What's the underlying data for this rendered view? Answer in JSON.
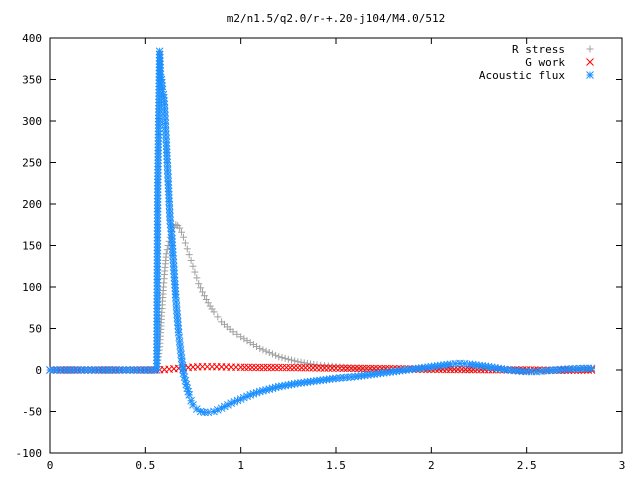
{
  "chart_data": {
    "type": "scatter",
    "title": "m2/n1.5/q2.0/r-+.20-j104/M4.0/512",
    "xlabel": "",
    "ylabel": "",
    "xlim": [
      0,
      3
    ],
    "ylim": [
      -100,
      400
    ],
    "x_ticks": [
      0,
      0.5,
      1,
      1.5,
      2,
      2.5,
      3
    ],
    "x_tick_labels": [
      "0",
      "0.5",
      "1",
      "1.5",
      "2",
      "2.5",
      "3"
    ],
    "y_ticks": [
      -100,
      -50,
      0,
      50,
      100,
      150,
      200,
      250,
      300,
      350,
      400
    ],
    "y_tick_labels": [
      "-100",
      "-50",
      "0",
      "50",
      "100",
      "150",
      "200",
      "250",
      "300",
      "350",
      "400"
    ],
    "grid": false,
    "legend_position": "top-right",
    "series": [
      {
        "name": "R stress",
        "marker": "plus",
        "color": "#a0a0a0",
        "points": [
          [
            0.0,
            0
          ],
          [
            0.1,
            0
          ],
          [
            0.2,
            0
          ],
          [
            0.3,
            0
          ],
          [
            0.4,
            0
          ],
          [
            0.5,
            0
          ],
          [
            0.56,
            0
          ],
          [
            0.575,
            28
          ],
          [
            0.58,
            45
          ],
          [
            0.585,
            65
          ],
          [
            0.59,
            83
          ],
          [
            0.595,
            100
          ],
          [
            0.6,
            115
          ],
          [
            0.605,
            128
          ],
          [
            0.61,
            140
          ],
          [
            0.62,
            150
          ],
          [
            0.63,
            160
          ],
          [
            0.64,
            167
          ],
          [
            0.65,
            172
          ],
          [
            0.66,
            175
          ],
          [
            0.67,
            174
          ],
          [
            0.68,
            171
          ],
          [
            0.69,
            166
          ],
          [
            0.7,
            160
          ],
          [
            0.71,
            153
          ],
          [
            0.72,
            146
          ],
          [
            0.73,
            139
          ],
          [
            0.74,
            132
          ],
          [
            0.75,
            125
          ],
          [
            0.76,
            118
          ],
          [
            0.77,
            111
          ],
          [
            0.78,
            104
          ],
          [
            0.8,
            94
          ],
          [
            0.82,
            85
          ],
          [
            0.84,
            77
          ],
          [
            0.86,
            70
          ],
          [
            0.88,
            64
          ],
          [
            0.9,
            58
          ],
          [
            0.93,
            52
          ],
          [
            0.96,
            46
          ],
          [
            1.0,
            40
          ],
          [
            1.05,
            33
          ],
          [
            1.1,
            26
          ],
          [
            1.15,
            21
          ],
          [
            1.2,
            16
          ],
          [
            1.25,
            13
          ],
          [
            1.3,
            10
          ],
          [
            1.35,
            8
          ],
          [
            1.4,
            6
          ],
          [
            1.5,
            4
          ],
          [
            1.6,
            2
          ],
          [
            1.7,
            1
          ],
          [
            1.8,
            1
          ],
          [
            1.9,
            0.5
          ],
          [
            2.0,
            0.3
          ],
          [
            2.2,
            0.1
          ],
          [
            2.4,
            0.0
          ],
          [
            2.6,
            0.0
          ],
          [
            2.84,
            0.0
          ]
        ]
      },
      {
        "name": "G work",
        "marker": "cross",
        "color": "#ff0000",
        "points": [
          [
            0.0,
            0
          ],
          [
            0.2,
            0
          ],
          [
            0.4,
            0
          ],
          [
            0.55,
            0
          ],
          [
            0.6,
            0.5
          ],
          [
            0.65,
            1.5
          ],
          [
            0.7,
            2.5
          ],
          [
            0.75,
            3.5
          ],
          [
            0.8,
            4
          ],
          [
            0.85,
            4
          ],
          [
            0.9,
            3.8
          ],
          [
            0.95,
            3.5
          ],
          [
            1.0,
            3.3
          ],
          [
            1.1,
            3
          ],
          [
            1.2,
            3
          ],
          [
            1.3,
            2.8
          ],
          [
            1.4,
            2.5
          ],
          [
            1.5,
            2.2
          ],
          [
            1.6,
            2
          ],
          [
            1.7,
            1.8
          ],
          [
            1.8,
            1.5
          ],
          [
            1.9,
            1.2
          ],
          [
            2.0,
            1
          ],
          [
            2.1,
            0.8
          ],
          [
            2.2,
            0.6
          ],
          [
            2.3,
            0.4
          ],
          [
            2.4,
            0.2
          ],
          [
            2.5,
            0
          ],
          [
            2.6,
            -0.3
          ],
          [
            2.7,
            -0.3
          ],
          [
            2.84,
            0
          ]
        ]
      },
      {
        "name": "Acoustic flux",
        "marker": "star",
        "color": "#1e90ff",
        "points": [
          [
            0.0,
            0
          ],
          [
            0.1,
            0
          ],
          [
            0.2,
            0
          ],
          [
            0.3,
            0
          ],
          [
            0.4,
            0
          ],
          [
            0.5,
            0
          ],
          [
            0.56,
            0
          ],
          [
            0.565,
            222
          ],
          [
            0.575,
            384
          ],
          [
            0.58,
            352
          ],
          [
            0.585,
            350
          ],
          [
            0.59,
            338
          ],
          [
            0.595,
            332
          ],
          [
            0.6,
            320
          ],
          [
            0.605,
            297
          ],
          [
            0.61,
            274
          ],
          [
            0.615,
            250
          ],
          [
            0.62,
            227
          ],
          [
            0.625,
            203
          ],
          [
            0.63,
            180
          ],
          [
            0.64,
            158
          ],
          [
            0.645,
            138
          ],
          [
            0.65,
            120
          ],
          [
            0.655,
            103
          ],
          [
            0.66,
            87
          ],
          [
            0.665,
            72
          ],
          [
            0.67,
            58
          ],
          [
            0.675,
            45
          ],
          [
            0.68,
            34
          ],
          [
            0.685,
            24
          ],
          [
            0.69,
            14
          ],
          [
            0.695,
            5
          ],
          [
            0.7,
            -4
          ],
          [
            0.71,
            -13
          ],
          [
            0.72,
            -22
          ],
          [
            0.73,
            -30
          ],
          [
            0.74,
            -37
          ],
          [
            0.75,
            -42
          ],
          [
            0.77,
            -47
          ],
          [
            0.79,
            -50
          ],
          [
            0.81,
            -51
          ],
          [
            0.83,
            -51
          ],
          [
            0.86,
            -50
          ],
          [
            0.9,
            -46
          ],
          [
            0.95,
            -40
          ],
          [
            1.0,
            -35
          ],
          [
            1.05,
            -30
          ],
          [
            1.1,
            -26
          ],
          [
            1.2,
            -20
          ],
          [
            1.3,
            -16
          ],
          [
            1.4,
            -13
          ],
          [
            1.5,
            -10
          ],
          [
            1.6,
            -8
          ],
          [
            1.7,
            -5
          ],
          [
            1.8,
            -2
          ],
          [
            1.9,
            1
          ],
          [
            2.0,
            4
          ],
          [
            2.1,
            7
          ],
          [
            2.15,
            8
          ],
          [
            2.2,
            7
          ],
          [
            2.3,
            4
          ],
          [
            2.4,
            0
          ],
          [
            2.5,
            -2
          ],
          [
            2.55,
            -2
          ],
          [
            2.6,
            -1
          ],
          [
            2.7,
            1
          ],
          [
            2.8,
            2
          ],
          [
            2.84,
            2
          ]
        ]
      }
    ]
  }
}
